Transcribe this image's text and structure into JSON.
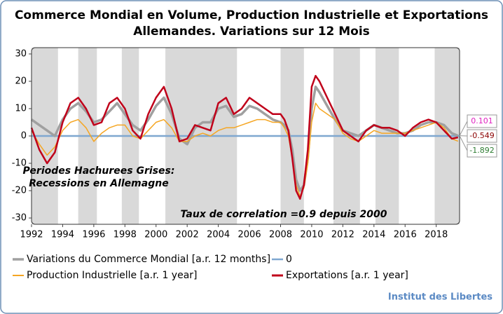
{
  "chart_data": {
    "type": "line",
    "title": [
      "Commerce Mondial en Volume, Production Industrielle et Exportations",
      "Allemandes. Variations sur 12 Mois"
    ],
    "x": [
      1992,
      1992.5,
      1993,
      1993.5,
      1994,
      1994.5,
      1995,
      1995.5,
      1996,
      1996.5,
      1997,
      1997.5,
      1998,
      1998.5,
      1999,
      1999.5,
      2000,
      2000.5,
      2001,
      2001.5,
      2002,
      2002.5,
      2003,
      2003.5,
      2004,
      2004.5,
      2005,
      2005.5,
      2006,
      2006.5,
      2007,
      2007.5,
      2008,
      2008.25,
      2008.5,
      2008.75,
      2009,
      2009.25,
      2009.5,
      2009.75,
      2010,
      2010.25,
      2010.5,
      2011,
      2011.5,
      2012,
      2012.5,
      2013,
      2013.5,
      2014,
      2014.5,
      2015,
      2015.5,
      2016,
      2016.5,
      2017,
      2017.5,
      2018,
      2018.5,
      2019,
      2019.4
    ],
    "series": [
      {
        "name": "Variations du Commerce Mondial [a.r. 12 months]",
        "color": "#a0a0a0",
        "width": 3.5,
        "values": [
          6,
          4,
          2,
          0,
          6,
          10,
          12,
          9,
          5,
          6,
          9,
          12,
          8,
          4,
          2,
          6,
          11,
          14,
          8,
          -1,
          -3,
          3,
          5,
          5,
          10,
          11,
          7,
          8,
          11,
          10,
          8,
          6,
          5,
          4,
          2,
          -5,
          -16,
          -20,
          -18,
          -8,
          10,
          18,
          16,
          11,
          6,
          2,
          1,
          0,
          2,
          4,
          3,
          2,
          1,
          1,
          2,
          4,
          5,
          5,
          4,
          1,
          0.1
        ]
      },
      {
        "name": "Production Industrielle [a.r. 1 year]",
        "color": "#f5a623",
        "width": 1.5,
        "values": [
          2,
          -3,
          -7,
          -4,
          2,
          5,
          6,
          3,
          -2,
          1,
          3,
          4,
          4,
          0,
          -1,
          2,
          5,
          6,
          3,
          -2,
          -2,
          0,
          1,
          0,
          2,
          3,
          3,
          4,
          5,
          6,
          6,
          5,
          5,
          3,
          0,
          -8,
          -18,
          -22,
          -19,
          -10,
          5,
          12,
          10,
          8,
          6,
          1,
          -1,
          -2,
          0,
          2,
          1,
          1,
          1,
          1,
          2,
          3,
          4,
          5,
          3,
          -1,
          -1.9
        ]
      },
      {
        "name": "Exportations  [a.r. 1 year]",
        "color": "#c0001a",
        "width": 2.5,
        "values": [
          3,
          -5,
          -10,
          -6,
          5,
          12,
          14,
          10,
          4,
          5,
          12,
          14,
          10,
          2,
          -1,
          8,
          14,
          18,
          10,
          -2,
          -1,
          4,
          3,
          2,
          12,
          14,
          8,
          10,
          14,
          12,
          10,
          8,
          8,
          6,
          2,
          -8,
          -20,
          -23,
          -18,
          -5,
          18,
          22,
          20,
          14,
          8,
          2,
          0,
          -2,
          2,
          4,
          3,
          3,
          2,
          0,
          3,
          5,
          6,
          5,
          2,
          -1,
          -0.5
        ]
      }
    ],
    "reference_line": {
      "name": "0",
      "value": 0,
      "color": "#7fa7d0"
    },
    "shaded_periods": [
      [
        1992,
        1993.7
      ],
      [
        1995,
        1996.2
      ],
      [
        1997.8,
        1998.9
      ],
      [
        2000.6,
        2005.2
      ],
      [
        2008,
        2009.5
      ],
      [
        2011.4,
        2013.1
      ],
      [
        2014.1,
        2015.6
      ],
      [
        2017.9,
        2019.5
      ]
    ],
    "shade_color": "#d9d9d9",
    "end_labels": [
      {
        "value": 0.101,
        "color": "#e020c0"
      },
      {
        "value": -0.549,
        "color": "#8b0000"
      },
      {
        "value": -1.892,
        "color": "#2e7d32"
      }
    ],
    "annotations": [
      "Periodes Hachurees Grises:",
      "Recessions en Allemagne",
      "Taux de correlation =0.9 depuis 2000"
    ],
    "source": "Institut des Libertes",
    "xlim": [
      1992,
      2019.5
    ],
    "ylim": [
      -32.3,
      32.3
    ],
    "xticks": [
      1992,
      1994,
      1996,
      1998,
      2000,
      2002,
      2004,
      2006,
      2008,
      2010,
      2012,
      2014,
      2016,
      2018
    ],
    "yticks": [
      -30,
      -20,
      -10,
      0,
      10,
      20,
      30
    ],
    "grid": false
  }
}
